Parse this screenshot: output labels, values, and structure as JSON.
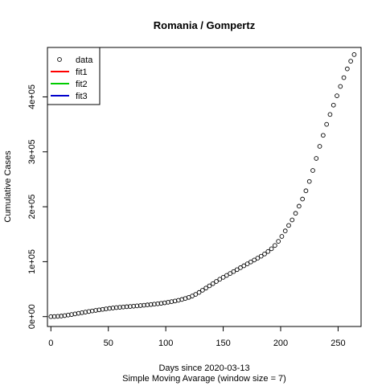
{
  "chart_data": {
    "type": "scatter",
    "title": "Romania / Gompertz",
    "xlabel": "Days since 2020-03-13",
    "xlabel2": "Simple Moving Avarage (window size = 7)",
    "ylabel": "Cumulative Cases",
    "xlim": [
      -3,
      270
    ],
    "ylim": [
      -18000,
      490000
    ],
    "x_ticks": [
      0,
      50,
      100,
      150,
      200,
      250
    ],
    "x_tick_labels": [
      "0",
      "50",
      "100",
      "150",
      "200",
      "250"
    ],
    "y_ticks": [
      0,
      100000,
      200000,
      300000,
      400000
    ],
    "y_tick_labels": [
      "0e+00",
      "1e+05",
      "2e+05",
      "3e+05",
      "4e+05"
    ],
    "grid": false,
    "legend_position": "top-left",
    "legend": [
      {
        "label": "data",
        "kind": "point",
        "color": "#000000"
      },
      {
        "label": "fit1",
        "kind": "line",
        "color": "#ff0000"
      },
      {
        "label": "fit2",
        "kind": "line",
        "color": "#00cc00"
      },
      {
        "label": "fit3",
        "kind": "line",
        "color": "#0000cc"
      }
    ],
    "series": [
      {
        "name": "data",
        "x": [
          0,
          3,
          6,
          9,
          12,
          15,
          18,
          21,
          24,
          27,
          30,
          33,
          36,
          39,
          42,
          45,
          48,
          51,
          54,
          57,
          60,
          63,
          66,
          69,
          72,
          75,
          78,
          81,
          84,
          87,
          90,
          93,
          96,
          99,
          102,
          105,
          108,
          111,
          114,
          117,
          120,
          123,
          126,
          129,
          132,
          135,
          138,
          141,
          144,
          147,
          150,
          153,
          156,
          159,
          162,
          165,
          168,
          171,
          174,
          177,
          180,
          183,
          186,
          189,
          192,
          195,
          198,
          201,
          204,
          207,
          210,
          213,
          216,
          219,
          222,
          225,
          228,
          231,
          234,
          237,
          240,
          243,
          246,
          249,
          252,
          255,
          258,
          261,
          264
        ],
        "values": [
          0,
          200,
          500,
          1000,
          1800,
          2800,
          3800,
          4900,
          6000,
          7100,
          8200,
          9300,
          10300,
          11300,
          12300,
          13200,
          14100,
          14900,
          15700,
          16400,
          17000,
          17500,
          18000,
          18500,
          19000,
          19500,
          20100,
          20700,
          21300,
          22000,
          22700,
          23400,
          24200,
          25100,
          26100,
          27200,
          28400,
          29700,
          31200,
          33000,
          35000,
          37500,
          40500,
          44000,
          48000,
          52000,
          56000,
          60000,
          64000,
          68000,
          71500,
          75000,
          78500,
          82000,
          85500,
          89000,
          92500,
          96000,
          99500,
          103000,
          106500,
          110000,
          114000,
          118500,
          123500,
          129500,
          137000,
          146000,
          156000,
          166000,
          176000,
          188000,
          201000,
          214000,
          229000,
          246000,
          266000,
          288000,
          310000,
          330000,
          350000,
          368000,
          385000,
          402000,
          419000,
          435000,
          451000,
          465000,
          477000
        ]
      },
      {
        "name": "fit1",
        "x": [],
        "values": []
      },
      {
        "name": "fit2",
        "x": [],
        "values": []
      },
      {
        "name": "fit3",
        "x": [],
        "values": []
      }
    ]
  }
}
